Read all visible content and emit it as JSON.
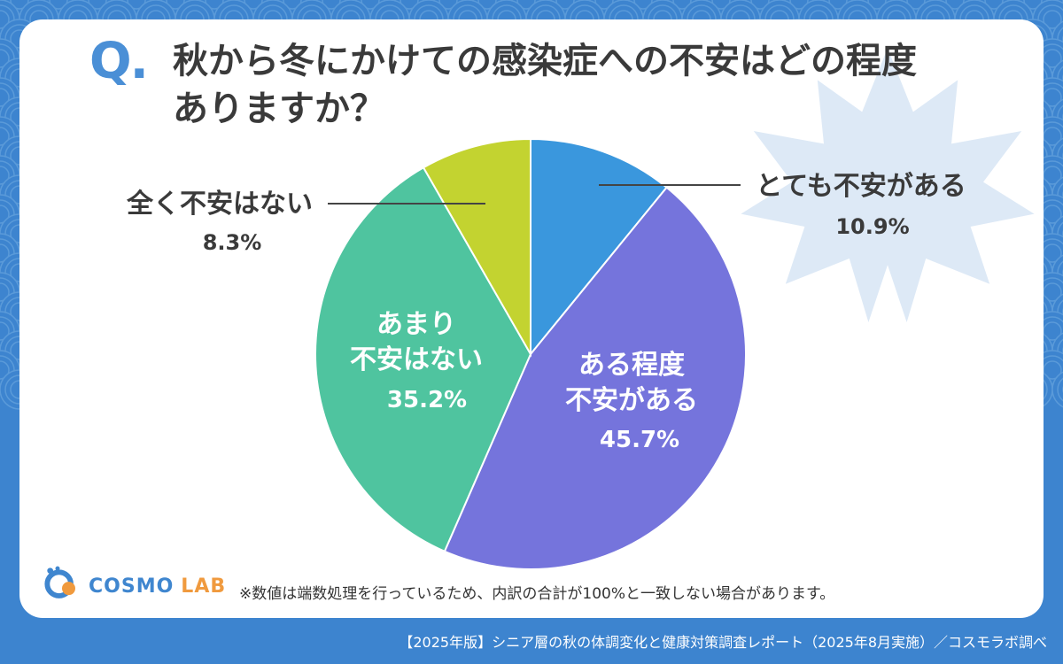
{
  "question": {
    "mark": "Q.",
    "line1": "秋から冬にかけての感染症への不安はどの程度",
    "line2": "ありますか？"
  },
  "chart_data": {
    "type": "pie",
    "title": "秋から冬にかけての感染症への不安はどの程度ありますか？",
    "slices": [
      {
        "label": "とても不安がある",
        "value": 10.9,
        "display": "10.9%",
        "color": "#3a97dd"
      },
      {
        "label": "ある程度不安がある",
        "value": 45.7,
        "display": "45.7%",
        "color": "#7574dc"
      },
      {
        "label": "あまり不安はない",
        "value": 35.2,
        "display": "35.2%",
        "color": "#4fc49f"
      },
      {
        "label": "全く不安はない",
        "value": 8.3,
        "display": "8.3%",
        "color": "#c3d330"
      }
    ]
  },
  "labels": {
    "s1_name": "とても不安がある",
    "s1_pct": "10.9%",
    "s2_line1": "ある程度",
    "s2_line2": "不安がある",
    "s2_pct": "45.7%",
    "s3_line1": "あまり",
    "s3_line2": "不安はない",
    "s3_pct": "35.2%",
    "s4_name": "全く不安はない",
    "s4_pct": "8.3%"
  },
  "logo": {
    "cosmo": "COSMO",
    "lab": "LAB",
    "primary": "#3f86cf",
    "accent": "#f09a3e"
  },
  "note": "※数値は端数処理を行っているため、内訳の合計が100%と一致しない場合があります。",
  "source": "【2025年版】シニア層の秋の体調変化と健康対策調査レポート（2025年8月実施）／コスモラボ調べ"
}
